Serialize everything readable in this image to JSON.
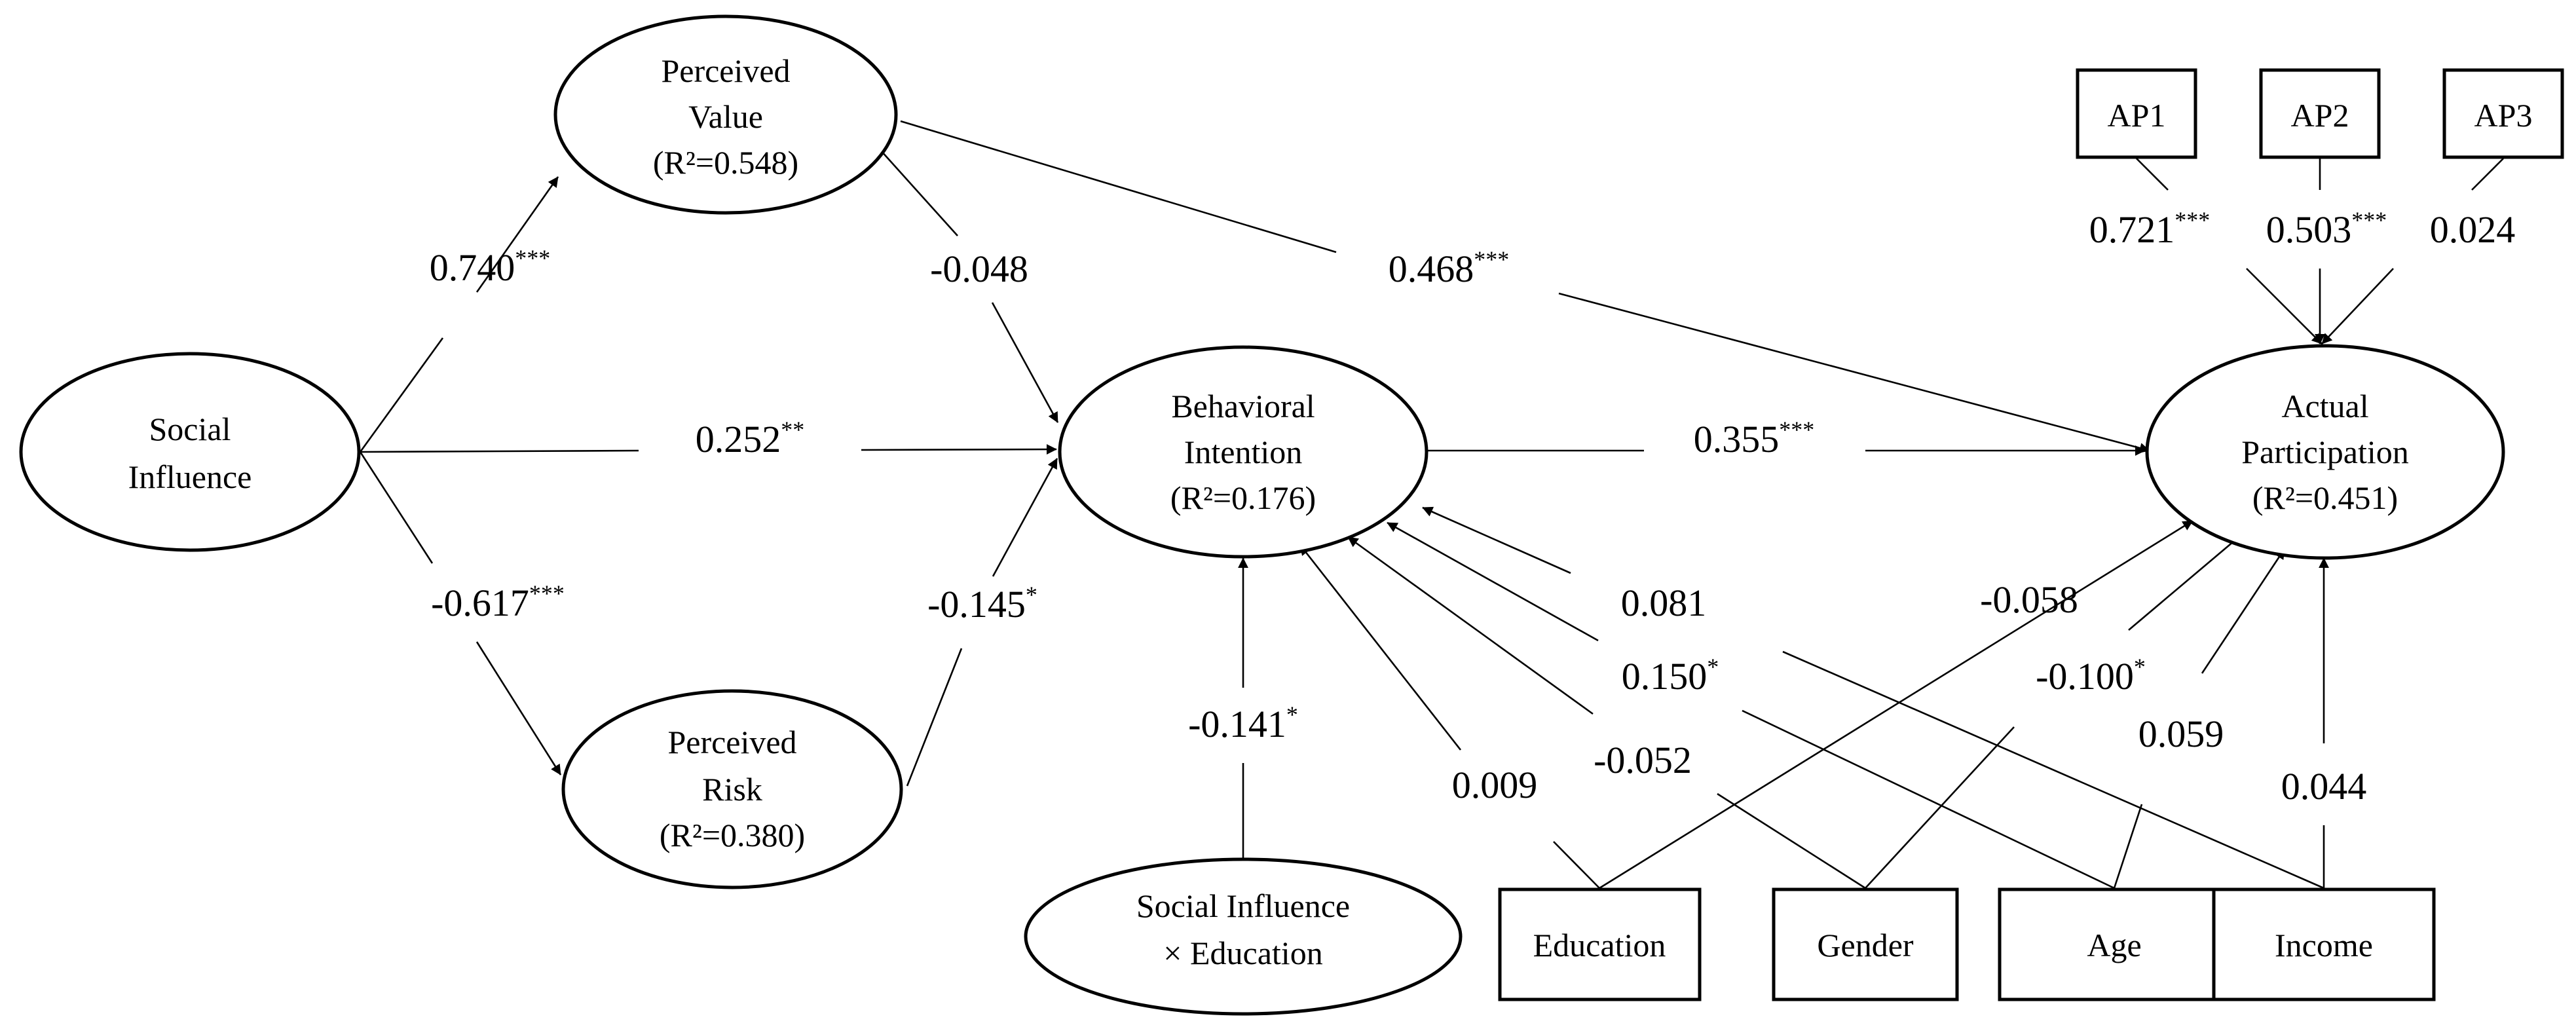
{
  "nodes": {
    "social_influence": {
      "lines": [
        "Social",
        "Influence"
      ]
    },
    "perceived_value": {
      "lines": [
        "Perceived",
        "Value"
      ],
      "r2": "(R²=0.548)"
    },
    "perceived_risk": {
      "lines": [
        "Perceived",
        "Risk"
      ],
      "r2": "(R²=0.380)"
    },
    "behavioral_intention": {
      "lines": [
        "Behavioral",
        "Intention"
      ],
      "r2": "(R²=0.176)"
    },
    "actual_participation": {
      "lines": [
        "Actual",
        "Participation"
      ],
      "r2": "(R²=0.451)"
    },
    "si_x_education": {
      "lines": [
        "Social Influence",
        "× Education"
      ]
    },
    "ap1": {
      "label": "AP1"
    },
    "ap2": {
      "label": "AP2"
    },
    "ap3": {
      "label": "AP3"
    },
    "education": {
      "label": "Education"
    },
    "gender": {
      "label": "Gender"
    },
    "age": {
      "label": "Age"
    },
    "income": {
      "label": "Income"
    }
  },
  "paths": {
    "si_pv": {
      "value": "0.740",
      "sig": "***"
    },
    "si_bi": {
      "value": "0.252",
      "sig": "**"
    },
    "si_pr": {
      "value": "-0.617",
      "sig": "***"
    },
    "pv_bi": {
      "value": "-0.048",
      "sig": ""
    },
    "pr_bi": {
      "value": "-0.145",
      "sig": "*"
    },
    "pv_ap": {
      "value": "0.468",
      "sig": "***"
    },
    "bi_ap": {
      "value": "0.355",
      "sig": "***"
    },
    "ap1_ap": {
      "value": "0.721",
      "sig": "***"
    },
    "ap2_ap": {
      "value": "0.503",
      "sig": "***"
    },
    "ap3_ap": {
      "value": "0.024",
      "sig": ""
    },
    "six_bi": {
      "value": "-0.141",
      "sig": "*"
    },
    "edu_bi": {
      "value": "0.009",
      "sig": ""
    },
    "gen_bi": {
      "value": "-0.052",
      "sig": ""
    },
    "age_bi": {
      "value": "0.150",
      "sig": "*"
    },
    "inc_bi": {
      "value": "0.081",
      "sig": ""
    },
    "edu_ap": {
      "value": "-0.058",
      "sig": ""
    },
    "gen_ap": {
      "value": "-0.100",
      "sig": "*"
    },
    "age_ap": {
      "value": "0.059",
      "sig": ""
    },
    "inc_ap": {
      "value": "0.044",
      "sig": ""
    }
  }
}
